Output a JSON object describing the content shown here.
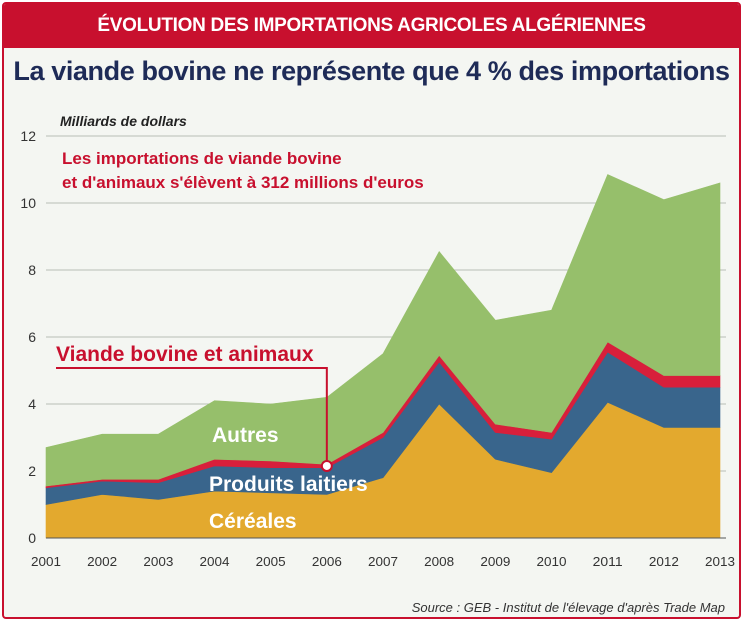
{
  "banner": "ÉVOLUTION DES IMPORTATIONS AGRICOLES ALGÉRIENNES",
  "headline": "La viande bovine ne représente que 4 % des importations",
  "source": "Source : GEB - Institut de l'élevage d'après Trade Map",
  "colors": {
    "brand_red": "#c8102e",
    "navy": "#1e2b57",
    "cereales": "#e3a92e",
    "produits_laitiers": "#39658c",
    "viande": "#d81f3b",
    "autres": "#96bf6b"
  },
  "chart_data": {
    "type": "area",
    "stacked": true,
    "ylabel": "Milliards de dollars",
    "ylim": [
      0,
      12
    ],
    "yticks": [
      0,
      2,
      4,
      6,
      8,
      10,
      12
    ],
    "grid": true,
    "x": [
      "2001",
      "2002",
      "2003",
      "2004",
      "2005",
      "2006",
      "2007",
      "2008",
      "2009",
      "2010",
      "2011",
      "2012",
      "2013"
    ],
    "series": [
      {
        "name": "Céréales",
        "color": "#e3a92e",
        "values": [
          1.0,
          1.3,
          1.15,
          1.4,
          1.35,
          1.3,
          1.8,
          4.0,
          2.35,
          1.95,
          4.05,
          3.3,
          3.3
        ]
      },
      {
        "name": "Produits laitiers",
        "color": "#39658c",
        "values": [
          0.5,
          0.4,
          0.5,
          0.75,
          0.75,
          0.8,
          1.2,
          1.25,
          0.8,
          1.0,
          1.5,
          1.2,
          1.2
        ]
      },
      {
        "name": "Viande bovine et animaux",
        "color": "#d81f3b",
        "values": [
          0.05,
          0.05,
          0.1,
          0.2,
          0.2,
          0.1,
          0.15,
          0.2,
          0.25,
          0.2,
          0.3,
          0.35,
          0.35
        ]
      },
      {
        "name": "Autres",
        "color": "#96bf6b",
        "values": [
          1.15,
          1.35,
          1.35,
          1.75,
          1.7,
          2.0,
          2.35,
          3.1,
          3.1,
          3.65,
          5.0,
          5.25,
          5.75
        ]
      }
    ],
    "annotations": {
      "note_line1": "Les importations de viande bovine",
      "note_line2": "et d'animaux s'élèvent à 312 millions d'euros",
      "callout_label": "Viande bovine et animaux",
      "series_labels": {
        "autres": "Autres",
        "produits_laitiers": "Produits laitiers",
        "cereales": "Céréales"
      }
    }
  }
}
